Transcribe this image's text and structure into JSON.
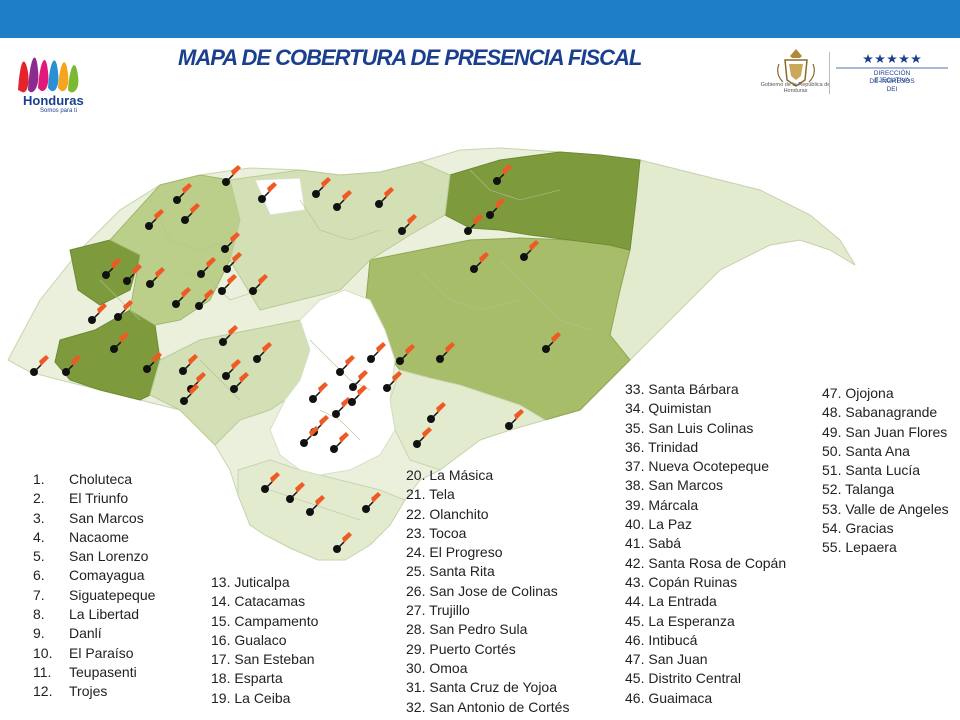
{
  "header": {
    "title": "MAPA DE COBERTURA DE PRESENCIA FISCAL",
    "bar_color": "#1e7fc7"
  },
  "logos": {
    "honduras_brand": "Honduras",
    "honduras_tagline": "Somos para ti",
    "government_seal_text": "Gobierno de la República de Honduras",
    "dei_line1": "DIRECCIÓN EJECUTIVA",
    "dei_line2": "DE INGRESOS",
    "dei_line3": "DEI"
  },
  "map": {
    "colors": {
      "dark": "#7d9b3d",
      "medium": "#a7bd6a",
      "light": "#d3dfb4",
      "pale": "#eaf0dc",
      "white": "#ffffff",
      "pin": "#ef5a24",
      "marker": "#111111"
    }
  },
  "lists": {
    "col1": [
      {
        "num": "1.",
        "name": "Choluteca"
      },
      {
        "num": "2.",
        "name": "El Triunfo"
      },
      {
        "num": "3.",
        "name": "San Marcos"
      },
      {
        "num": "4.",
        "name": "Nacaome"
      },
      {
        "num": "5.",
        "name": "San Lorenzo"
      },
      {
        "num": "6.",
        "name": "Comayagua"
      },
      {
        "num": "7.",
        "name": "Siguatepeque"
      },
      {
        "num": "8.",
        "name": "La Libertad"
      },
      {
        "num": "9.",
        "name": "Danlí"
      },
      {
        "num": "10.",
        "name": "El Paraíso"
      },
      {
        "num": "11.",
        "name": "Teupasenti"
      },
      {
        "num": "12.",
        "name": "Trojes"
      }
    ],
    "col2": [
      "13. Juticalpa",
      "14. Catacamas",
      "15. Campamento",
      "16. Gualaco",
      "17. San Esteban",
      "18. Esparta",
      "19. La Ceiba"
    ],
    "col3": [
      "20. La Másica",
      "21. Tela",
      "22. Olanchito",
      "23. Tocoa",
      "24. El Progreso",
      "25. Santa Rita",
      "26. San Jose de Colinas",
      "27. Trujillo",
      "28. San Pedro Sula",
      "29. Puerto Cortés",
      "30. Omoa",
      "31. Santa Cruz de Yojoa",
      "32. San Antonio de Cortés"
    ],
    "col4": [
      "33. Santa Bárbara",
      "34. Quimistan",
      "35. San Luis Colinas",
      "36. Trinidad",
      "37. Nueva Ocotepeque",
      "38. San Marcos",
      "39. Márcala",
      "40. La Paz",
      "41. Sabá",
      "42. Santa Rosa de Copán",
      "43. Copán Ruinas",
      "44. La Entrada",
      "45. La Esperanza",
      "46. Intibucá",
      "47. San Juan",
      "45. Distrito Central",
      "46. Guaimaca"
    ],
    "col5": [
      "47. Ojojona",
      "48. Sabanagrande",
      "49. San Juan Flores",
      "50. Santa Ana",
      "51. Santa Lucía",
      "52. Talanga",
      "53. Valle de Angeles",
      "54. Gracias",
      "55. Lepaera"
    ]
  }
}
